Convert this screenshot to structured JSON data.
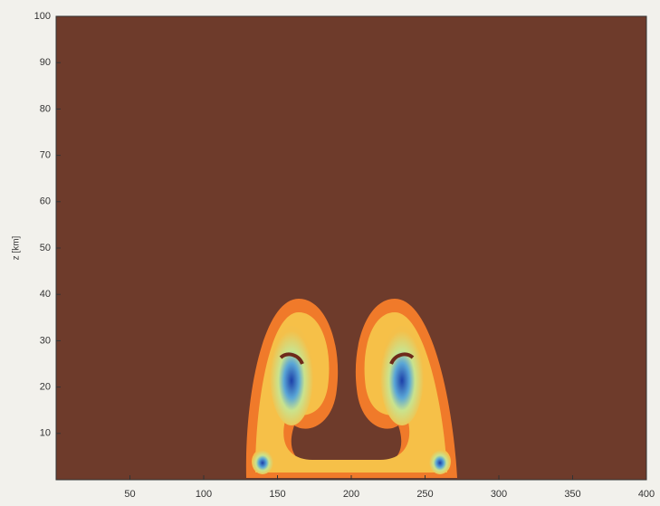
{
  "chart_data": {
    "type": "image",
    "ylabel": "z [km]",
    "xlim": [
      0,
      400
    ],
    "xticks": [
      50,
      100,
      150,
      200,
      250,
      300,
      350,
      400
    ],
    "ylim": [
      0,
      100
    ],
    "yticks": [
      10,
      20,
      30,
      40,
      50,
      60,
      70,
      80,
      90,
      100
    ]
  }
}
